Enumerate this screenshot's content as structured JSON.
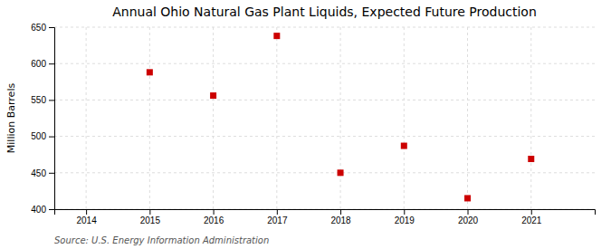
{
  "chart_data": {
    "type": "scatter",
    "title": "Annual Ohio Natural Gas Plant Liquids, Expected Future Production",
    "ylabel": "Million Barrels",
    "source": "Source: U.S. Energy Information Administration",
    "x": [
      2015,
      2016,
      2017,
      2018,
      2019,
      2020,
      2021
    ],
    "values": [
      588,
      556,
      638,
      450,
      487,
      415,
      469
    ],
    "color": "#cc0000",
    "marker": "square",
    "xlim": [
      2013.5,
      2022.0
    ],
    "ylim": [
      400,
      650
    ],
    "xticks": [
      2014,
      2015,
      2016,
      2017,
      2018,
      2019,
      2020,
      2021
    ],
    "yticks": [
      400,
      450,
      500,
      550,
      600,
      650
    ],
    "grid": true
  }
}
